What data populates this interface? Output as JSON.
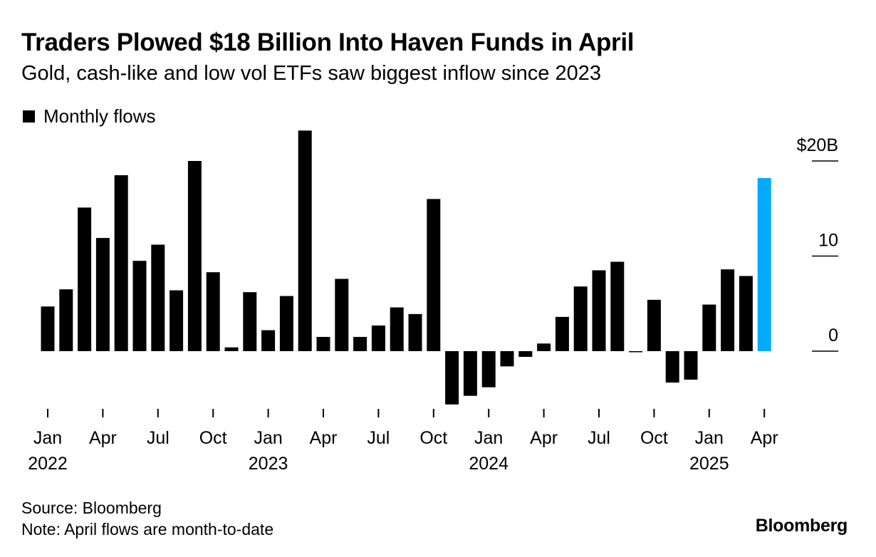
{
  "title": "Traders Plowed $18 Billion Into Haven Funds in April",
  "subtitle": "Gold, cash-like and low vol ETFs saw biggest inflow since 2023",
  "legend": {
    "label": "Monthly flows"
  },
  "footer": {
    "source": "Source: Bloomberg",
    "note": "Note: April flows are month-to-date"
  },
  "brand": "Bloomberg",
  "colors": {
    "bar": "#000000",
    "highlight": "#00aaff"
  },
  "chart_data": {
    "type": "bar",
    "series": [
      {
        "name": "Monthly flows"
      }
    ],
    "y_ticks": [
      {
        "value": 0,
        "label": "0"
      },
      {
        "value": 10,
        "label": "10"
      },
      {
        "value": 20,
        "label": "$20B"
      }
    ],
    "ylim": [
      -6,
      23
    ],
    "x_ticks": [
      {
        "index": 0,
        "month": "Jan",
        "year": "2022"
      },
      {
        "index": 3,
        "month": "Apr",
        "year": ""
      },
      {
        "index": 6,
        "month": "Jul",
        "year": ""
      },
      {
        "index": 9,
        "month": "Oct",
        "year": ""
      },
      {
        "index": 12,
        "month": "Jan",
        "year": "2023"
      },
      {
        "index": 15,
        "month": "Apr",
        "year": ""
      },
      {
        "index": 18,
        "month": "Jul",
        "year": ""
      },
      {
        "index": 21,
        "month": "Oct",
        "year": ""
      },
      {
        "index": 24,
        "month": "Jan",
        "year": "2024"
      },
      {
        "index": 27,
        "month": "Apr",
        "year": ""
      },
      {
        "index": 30,
        "month": "Jul",
        "year": ""
      },
      {
        "index": 33,
        "month": "Oct",
        "year": ""
      },
      {
        "index": 36,
        "month": "Jan",
        "year": "2025"
      },
      {
        "index": 39,
        "month": "Apr",
        "year": ""
      }
    ],
    "categories": [
      "2022-01",
      "2022-02",
      "2022-03",
      "2022-04",
      "2022-05",
      "2022-06",
      "2022-07",
      "2022-08",
      "2022-09",
      "2022-10",
      "2022-11",
      "2022-12",
      "2023-01",
      "2023-02",
      "2023-03",
      "2023-04",
      "2023-05",
      "2023-06",
      "2023-07",
      "2023-08",
      "2023-09",
      "2023-10",
      "2023-11",
      "2023-12",
      "2024-01",
      "2024-02",
      "2024-03",
      "2024-04",
      "2024-05",
      "2024-06",
      "2024-07",
      "2024-08",
      "2024-09",
      "2024-10",
      "2024-11",
      "2024-12",
      "2025-01",
      "2025-02",
      "2025-03",
      "2025-04"
    ],
    "values": [
      4.7,
      6.5,
      15.1,
      11.9,
      18.5,
      9.5,
      11.2,
      6.4,
      20.0,
      8.3,
      0.4,
      6.2,
      2.2,
      5.8,
      23.2,
      1.5,
      7.6,
      1.5,
      2.7,
      4.6,
      3.9,
      16.0,
      -5.6,
      -4.7,
      -3.8,
      -1.6,
      -0.6,
      0.8,
      3.6,
      6.8,
      8.5,
      9.4,
      -0.1,
      5.4,
      -3.3,
      -3.0,
      4.9,
      8.6,
      7.9,
      18.2
    ],
    "highlight_index": 39
  }
}
